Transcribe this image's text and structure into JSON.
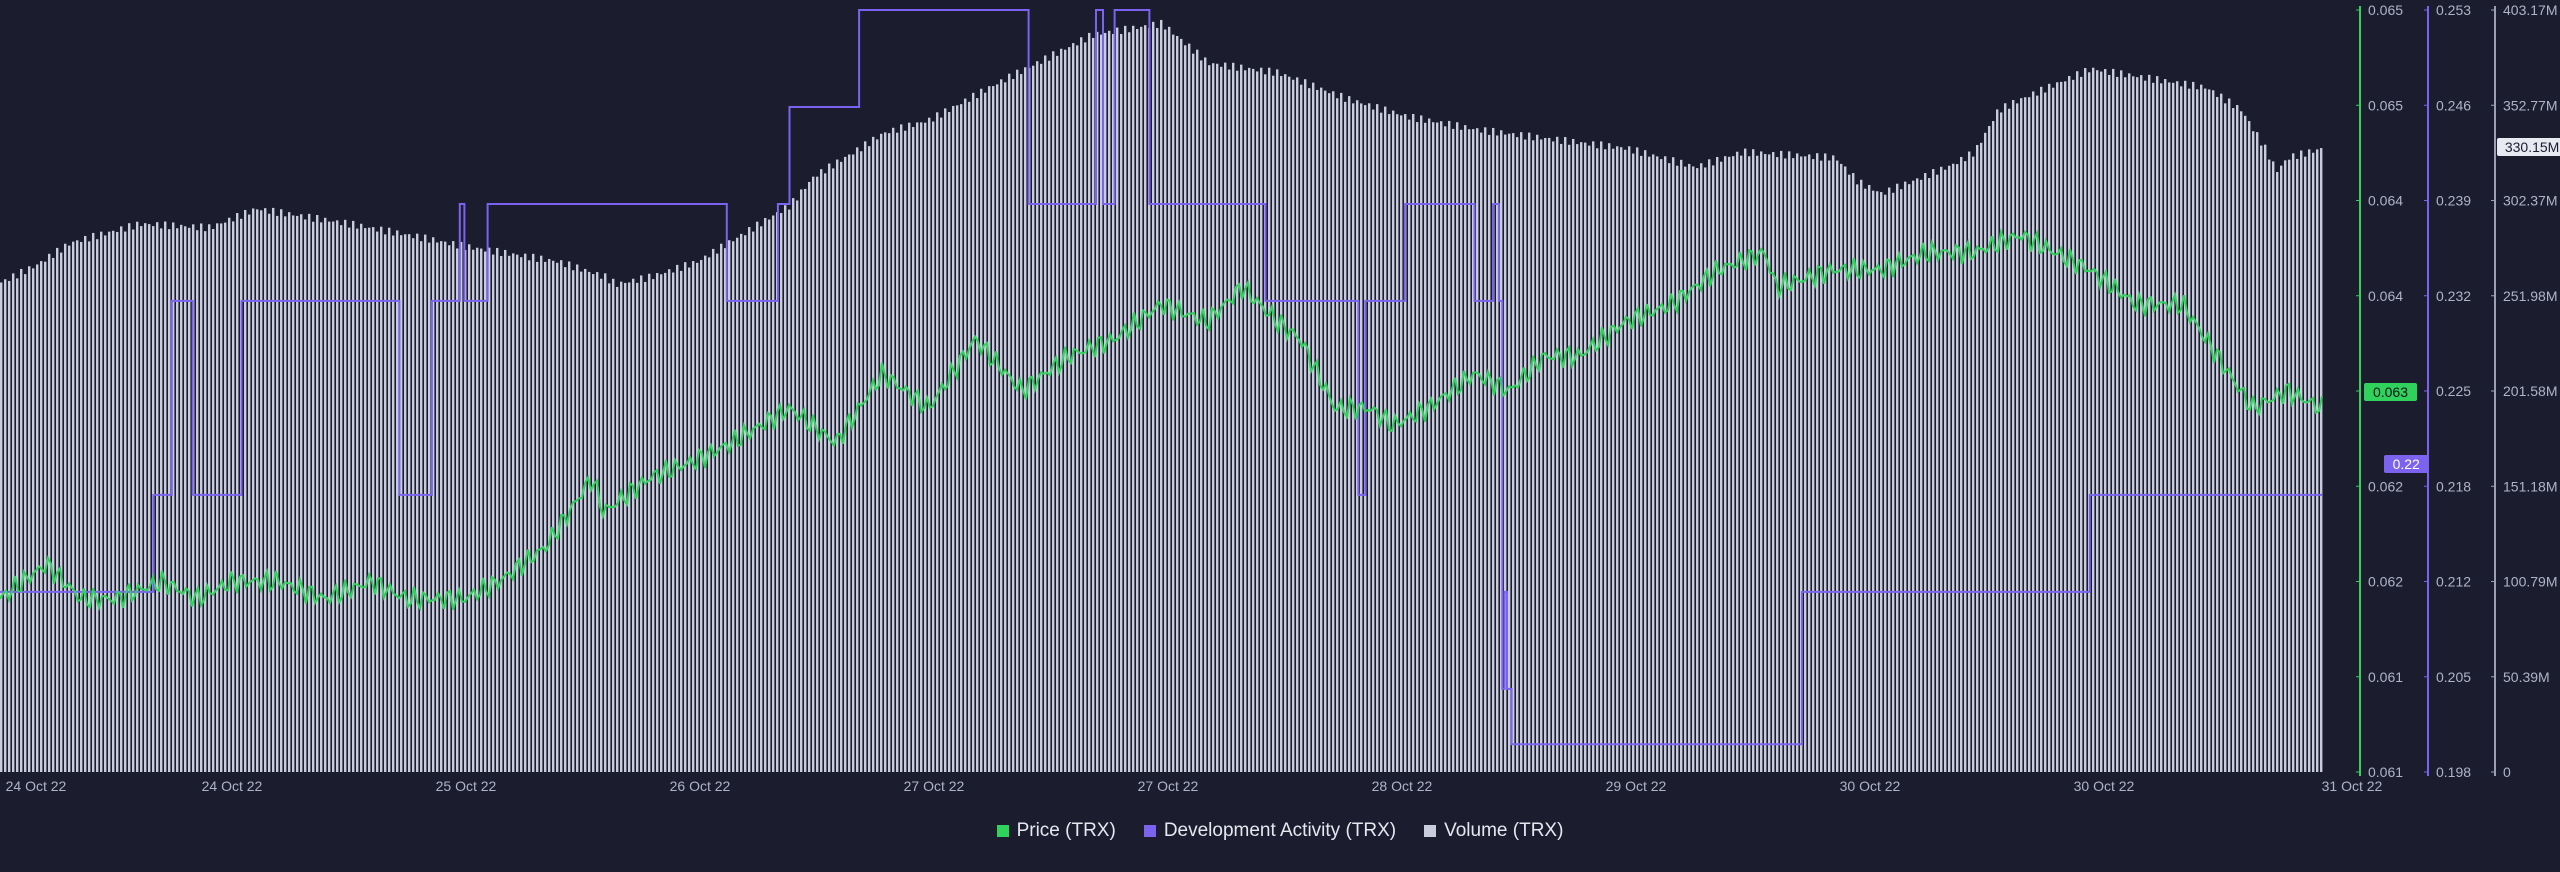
{
  "chart_data": {
    "type": "line",
    "x_labels": [
      "24 Oct 22",
      "24 Oct 22",
      "25 Oct 22",
      "26 Oct 22",
      "27 Oct 22",
      "27 Oct 22",
      "28 Oct 22",
      "29 Oct 22",
      "30 Oct 22",
      "30 Oct 22",
      "31 Oct 22"
    ],
    "series": [
      {
        "name": "Price (TRX)",
        "color": "#2fd25a",
        "axis": "price",
        "current_label": "0.063",
        "x": [
          0,
          0.02,
          0.035,
          0.05,
          0.07,
          0.085,
          0.1,
          0.12,
          0.14,
          0.16,
          0.175,
          0.2,
          0.215,
          0.235,
          0.255,
          0.26,
          0.27,
          0.28,
          0.3,
          0.315,
          0.34,
          0.36,
          0.38,
          0.4,
          0.42,
          0.44,
          0.46,
          0.48,
          0.5,
          0.52,
          0.535,
          0.55,
          0.56,
          0.575,
          0.59,
          0.6,
          0.615,
          0.635,
          0.65,
          0.665,
          0.68,
          0.7,
          0.72,
          0.74,
          0.76,
          0.765,
          0.79,
          0.81,
          0.83,
          0.85,
          0.87,
          0.9,
          0.92,
          0.94,
          0.95,
          0.97,
          0.985,
          1.0
        ],
        "values": [
          0.0619,
          0.0621,
          0.0619,
          0.0619,
          0.062,
          0.0619,
          0.062,
          0.062,
          0.0619,
          0.062,
          0.0619,
          0.0619,
          0.062,
          0.0622,
          0.0626,
          0.0624,
          0.0625,
          0.0626,
          0.0627,
          0.0628,
          0.063,
          0.0628,
          0.0632,
          0.063,
          0.0634,
          0.0631,
          0.0633,
          0.0634,
          0.0636,
          0.0635,
          0.0637,
          0.0635,
          0.0634,
          0.063,
          0.063,
          0.0629,
          0.063,
          0.0632,
          0.0631,
          0.0633,
          0.0633,
          0.0635,
          0.0636,
          0.0638,
          0.0639,
          0.0637,
          0.0638,
          0.0638,
          0.0639,
          0.0639,
          0.064,
          0.0638,
          0.0636,
          0.0636,
          0.0634,
          0.063,
          0.0631,
          0.063
        ]
      },
      {
        "name": "Development Activity (TRX)",
        "color": "#7b63f0",
        "axis": "dev",
        "current_label": "0.22",
        "x": [
          0,
          0.066,
          0.066,
          0.074,
          0.074,
          0.083,
          0.083,
          0.104,
          0.104,
          0.172,
          0.172,
          0.186,
          0.186,
          0.198,
          0.198,
          0.2,
          0.2,
          0.21,
          0.21,
          0.313,
          0.313,
          0.335,
          0.335,
          0.34,
          0.34,
          0.37,
          0.37,
          0.443,
          0.443,
          0.472,
          0.472,
          0.475,
          0.475,
          0.48,
          0.48,
          0.495,
          0.495,
          0.545,
          0.545,
          0.585,
          0.585,
          0.588,
          0.588,
          0.605,
          0.605,
          0.635,
          0.635,
          0.643,
          0.643,
          0.6455,
          0.6455,
          0.647,
          0.647,
          0.648,
          0.648,
          0.649,
          0.649,
          0.651,
          0.651,
          0.653,
          0.653,
          0.776,
          0.776,
          0.9,
          0.9,
          1.0
        ],
        "values": [
          0.211,
          0.211,
          0.218,
          0.218,
          0.232,
          0.232,
          0.218,
          0.218,
          0.232,
          0.232,
          0.218,
          0.218,
          0.232,
          0.232,
          0.239,
          0.239,
          0.232,
          0.232,
          0.239,
          0.239,
          0.232,
          0.232,
          0.239,
          0.239,
          0.246,
          0.246,
          0.253,
          0.253,
          0.239,
          0.239,
          0.253,
          0.253,
          0.239,
          0.239,
          0.253,
          0.253,
          0.239,
          0.239,
          0.232,
          0.232,
          0.218,
          0.218,
          0.232,
          0.232,
          0.239,
          0.239,
          0.232,
          0.232,
          0.239,
          0.239,
          0.232,
          0.232,
          0.204,
          0.204,
          0.211,
          0.211,
          0.204,
          0.204,
          0.2,
          0.2,
          0.2,
          0.2,
          0.211,
          0.211,
          0.218,
          0.218
        ]
      },
      {
        "name": "Volume (TRX)",
        "color": "#c9ccdc",
        "axis": "volume",
        "current_label": "330.15M",
        "x": [
          0,
          0.015,
          0.03,
          0.06,
          0.09,
          0.11,
          0.15,
          0.18,
          0.2,
          0.225,
          0.24,
          0.26,
          0.265,
          0.28,
          0.3,
          0.34,
          0.35,
          0.37,
          0.38,
          0.4,
          0.43,
          0.47,
          0.5,
          0.52,
          0.55,
          0.58,
          0.605,
          0.635,
          0.66,
          0.7,
          0.73,
          0.75,
          0.79,
          0.8,
          0.81,
          0.84,
          0.85,
          0.86,
          0.87,
          0.9,
          0.92,
          0.95,
          0.965,
          0.975,
          0.98,
          0.985,
          1.0
        ],
        "values": [
          259,
          268,
          280,
          290,
          288,
          298,
          290,
          283,
          278,
          273,
          270,
          262,
          258,
          262,
          270,
          300,
          315,
          330,
          338,
          345,
          365,
          390,
          396,
          375,
          370,
          356,
          347,
          340,
          336,
          330,
          320,
          328,
          325,
          312,
          306,
          321,
          328,
          350,
          356,
          372,
          368,
          362,
          350,
          330,
          318,
          325,
          330
        ]
      }
    ],
    "axes": {
      "price": {
        "ticks": [
          "0.065",
          "0.065",
          "0.064",
          "0.064",
          "0.063",
          "0.062",
          "0.062",
          "0.061",
          "0.061"
        ],
        "min": 0.0609,
        "max": 0.0653
      },
      "dev": {
        "ticks": [
          "0.253",
          "0.246",
          "0.239",
          "0.232",
          "0.225",
          "0.218",
          "0.212",
          "0.205",
          "0.198"
        ],
        "min": 0.198,
        "max": 0.253
      },
      "volume": {
        "ticks": [
          "403.17M",
          "352.77M",
          "302.37M",
          "251.98M",
          "201.58M",
          "151.18M",
          "100.79M",
          "50.39M",
          "0"
        ],
        "min": 0,
        "max": 403.17
      }
    },
    "grid": false,
    "legend_position": "bottom-center"
  },
  "legend": [
    {
      "label": "Price (TRX)",
      "color": "#2fd25a"
    },
    {
      "label": "Development Activity (TRX)",
      "color": "#7b63f0"
    },
    {
      "label": "Volume (TRX)",
      "color": "#c9ccdc"
    }
  ]
}
